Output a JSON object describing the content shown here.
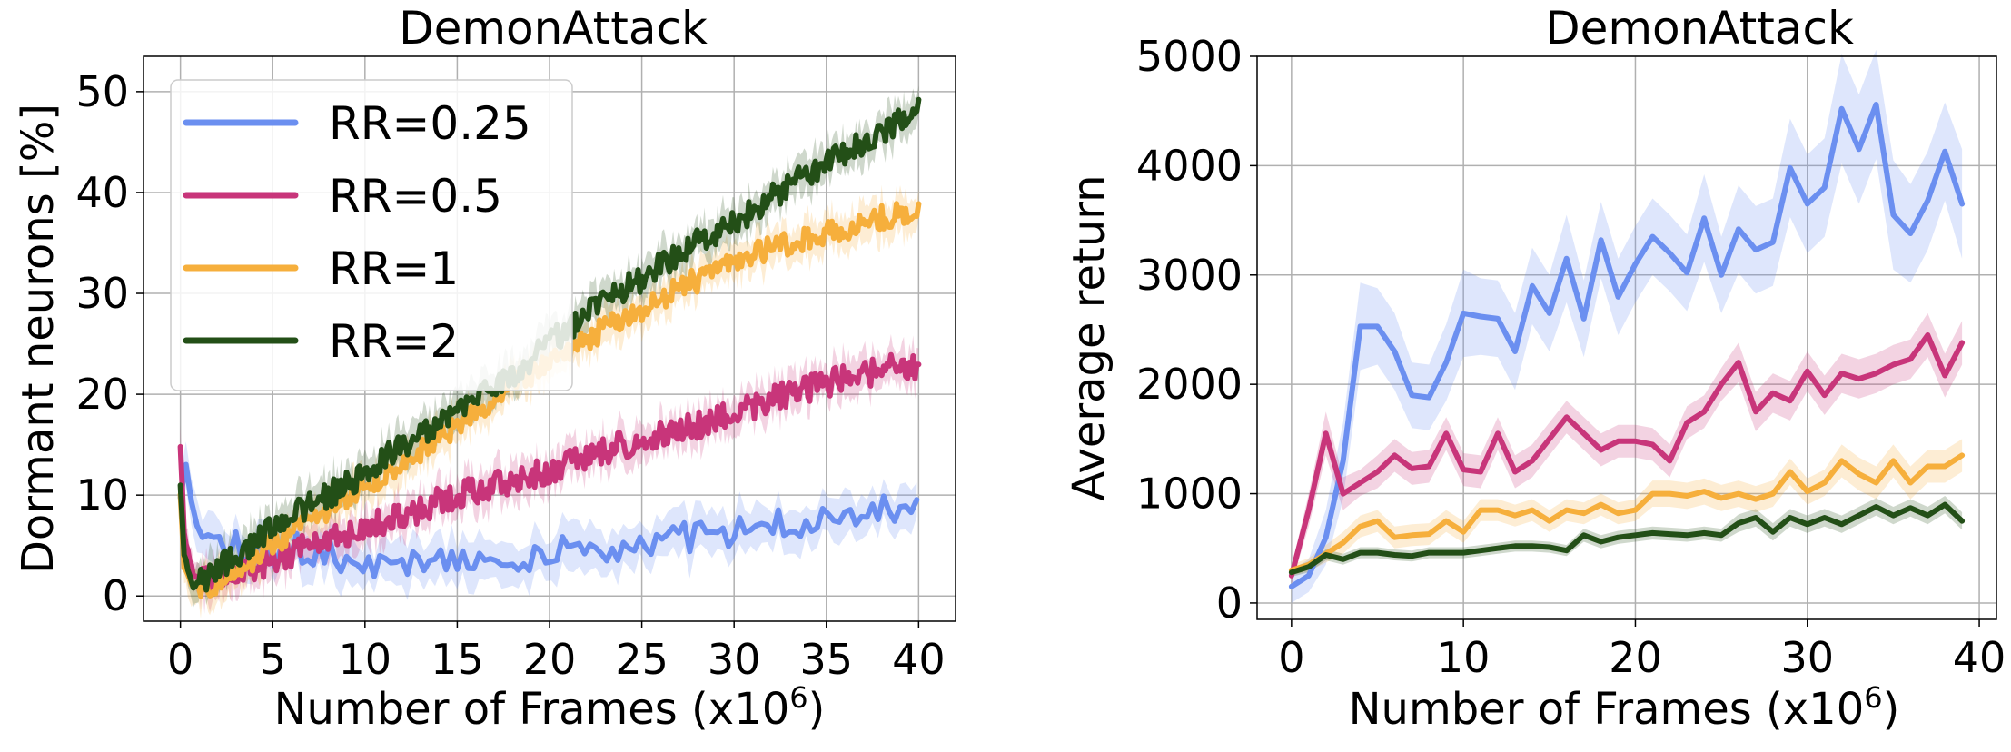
{
  "chart_data": [
    {
      "type": "line",
      "title": "DemonAttack",
      "xlabel": "Number of Frames (x10",
      "xlabel_sup": "6",
      "xlabel_end": ")",
      "ylabel": "Dormant neurons [%]",
      "xlim": [
        -2,
        42
      ],
      "ylim": [
        -2.5,
        53.5
      ],
      "xticks": [
        0,
        5,
        10,
        15,
        20,
        25,
        30,
        35,
        40
      ],
      "yticks": [
        0,
        10,
        20,
        30,
        40,
        50
      ],
      "grid": true,
      "legend": "top-left",
      "series": [
        {
          "name": "RR=0.25",
          "color": "#6b8ff0",
          "x": [
            0,
            0.3,
            0.8,
            2,
            3,
            4,
            5,
            6,
            7,
            8,
            9,
            10,
            11,
            12,
            13,
            14,
            15,
            16,
            17,
            18,
            19,
            20,
            21,
            22,
            23,
            24,
            25,
            26,
            27,
            28,
            29,
            30,
            31,
            32,
            33,
            34,
            35,
            36,
            37,
            38,
            39,
            40
          ],
          "y": [
            10,
            13,
            7,
            6,
            5.5,
            4.5,
            4,
            5,
            4,
            4,
            3.5,
            3.5,
            3,
            3,
            3.5,
            3.5,
            4,
            4,
            3.5,
            3,
            3.5,
            4,
            4.5,
            4.5,
            5,
            5,
            5.5,
            5.5,
            6,
            6,
            6,
            6.5,
            6.5,
            7,
            7,
            7,
            7.5,
            7.5,
            8,
            8.5,
            9,
            9
          ]
        },
        {
          "name": "RR=0.5",
          "color": "#c8357a",
          "x": [
            0,
            0.2,
            0.7,
            1.5,
            3,
            5,
            7,
            10,
            12,
            15,
            18,
            20,
            22,
            25,
            27,
            30,
            32,
            35,
            38,
            40
          ],
          "y": [
            15,
            6,
            2,
            1.5,
            2.5,
            3.5,
            5,
            7,
            8,
            10,
            11.5,
            12.5,
            14,
            15.5,
            16.5,
            18,
            19.5,
            21,
            22.5,
            23
          ]
        },
        {
          "name": "RR=1",
          "color": "#f6af3c",
          "x": [
            0,
            0.2,
            0.7,
            1.5,
            3,
            5,
            7,
            10,
            12,
            15,
            18,
            20,
            22,
            25,
            27,
            30,
            32,
            35,
            38,
            40
          ],
          "y": [
            10,
            3,
            0.8,
            1,
            2.5,
            5,
            7.5,
            11,
            13,
            17,
            21,
            23,
            25.5,
            28.5,
            30.5,
            33,
            34.5,
            36,
            37.5,
            38
          ]
        },
        {
          "name": "RR=2",
          "color": "#234f17",
          "x": [
            0,
            0.2,
            0.7,
            1.5,
            3,
            5,
            7,
            10,
            12,
            15,
            18,
            20,
            22,
            25,
            27,
            30,
            32,
            35,
            38,
            40
          ],
          "y": [
            11,
            4,
            1,
            2,
            4,
            7,
            9,
            12,
            15,
            18,
            22,
            25,
            28,
            31.5,
            34,
            37,
            39.5,
            43,
            46,
            48
          ]
        }
      ]
    },
    {
      "type": "line",
      "title": "DemonAttack",
      "xlabel": "Number of Frames (x10",
      "xlabel_sup": "6",
      "xlabel_end": ")",
      "ylabel": "Average return",
      "xlim": [
        -2,
        41
      ],
      "ylim": [
        -150,
        5000
      ],
      "xticks": [
        0,
        10,
        20,
        30,
        40
      ],
      "yticks": [
        0,
        1000,
        2000,
        3000,
        4000,
        5000
      ],
      "grid": true,
      "series": [
        {
          "name": "RR=0.25",
          "color": "#6b8ff0",
          "x": [
            0,
            1,
            2,
            3,
            4,
            5,
            6,
            7,
            8,
            9,
            10,
            11,
            12,
            13,
            14,
            15,
            16,
            17,
            18,
            19,
            20,
            21,
            22,
            23,
            24,
            25,
            26,
            27,
            28,
            29,
            30,
            31,
            32,
            33,
            34,
            35,
            36,
            37,
            38,
            39
          ],
          "y": [
            150,
            250,
            600,
            1300,
            2530,
            2530,
            2300,
            1900,
            1880,
            2200,
            2650,
            2620,
            2600,
            2300,
            2900,
            2650,
            3150,
            2600,
            3320,
            2800,
            3100,
            3350,
            3200,
            3020,
            3520,
            3000,
            3420,
            3230,
            3300,
            3980,
            3650,
            3800,
            4520,
            4150,
            4560,
            3550,
            3380,
            3680,
            4130,
            3650
          ],
          "band": [
            150,
            150,
            250,
            350,
            400,
            350,
            350,
            300,
            300,
            350,
            400,
            350,
            350,
            350,
            350,
            350,
            400,
            350,
            350,
            350,
            350,
            350,
            350,
            350,
            400,
            350,
            400,
            400,
            400,
            450,
            450,
            450,
            500,
            500,
            500,
            500,
            450,
            450,
            450,
            500
          ]
        },
        {
          "name": "RR=0.5",
          "color": "#c8357a",
          "x": [
            0,
            1,
            2,
            3,
            4,
            5,
            6,
            7,
            8,
            9,
            10,
            11,
            12,
            13,
            14,
            15,
            16,
            17,
            18,
            19,
            20,
            21,
            22,
            23,
            24,
            25,
            26,
            27,
            28,
            29,
            30,
            31,
            32,
            33,
            34,
            35,
            36,
            37,
            38,
            39
          ],
          "y": [
            250,
            850,
            1550,
            1000,
            1100,
            1200,
            1350,
            1230,
            1250,
            1550,
            1220,
            1200,
            1550,
            1200,
            1300,
            1500,
            1700,
            1550,
            1400,
            1480,
            1480,
            1450,
            1300,
            1650,
            1750,
            2000,
            2200,
            1750,
            1920,
            1850,
            2120,
            1900,
            2100,
            2050,
            2100,
            2180,
            2230,
            2450,
            2080,
            2380
          ],
          "band": [
            80,
            150,
            200,
            150,
            120,
            150,
            150,
            150,
            150,
            150,
            150,
            150,
            150,
            150,
            150,
            150,
            150,
            150,
            150,
            150,
            150,
            150,
            150,
            150,
            150,
            150,
            180,
            180,
            180,
            180,
            180,
            180,
            180,
            180,
            180,
            180,
            180,
            200,
            200,
            200
          ]
        },
        {
          "name": "RR=1",
          "color": "#f6af3c",
          "x": [
            0,
            1,
            2,
            3,
            4,
            5,
            6,
            7,
            8,
            9,
            10,
            11,
            12,
            13,
            14,
            15,
            16,
            17,
            18,
            19,
            20,
            21,
            22,
            23,
            24,
            25,
            26,
            27,
            28,
            29,
            30,
            31,
            32,
            33,
            34,
            35,
            36,
            37,
            38,
            39
          ],
          "y": [
            300,
            350,
            450,
            550,
            700,
            750,
            600,
            620,
            630,
            750,
            650,
            850,
            850,
            800,
            850,
            750,
            850,
            820,
            900,
            820,
            850,
            1000,
            1000,
            980,
            1020,
            960,
            1000,
            950,
            1000,
            1200,
            1020,
            1100,
            1300,
            1180,
            1100,
            1300,
            1100,
            1250,
            1250,
            1350
          ],
          "band": [
            50,
            60,
            80,
            100,
            100,
            100,
            100,
            100,
            100,
            100,
            100,
            100,
            100,
            100,
            100,
            100,
            100,
            100,
            100,
            100,
            100,
            120,
            120,
            120,
            120,
            120,
            120,
            120,
            120,
            120,
            120,
            120,
            150,
            150,
            150,
            150,
            150,
            150,
            150,
            150
          ]
        },
        {
          "name": "RR=2",
          "color": "#234f17",
          "x": [
            0,
            1,
            2,
            3,
            4,
            5,
            6,
            7,
            8,
            9,
            10,
            11,
            12,
            13,
            14,
            15,
            16,
            17,
            18,
            19,
            20,
            21,
            22,
            23,
            24,
            25,
            26,
            27,
            28,
            29,
            30,
            31,
            32,
            33,
            34,
            35,
            36,
            37,
            38,
            39
          ],
          "y": [
            280,
            330,
            440,
            400,
            460,
            460,
            440,
            430,
            460,
            460,
            460,
            480,
            500,
            520,
            520,
            510,
            480,
            620,
            560,
            600,
            620,
            640,
            630,
            620,
            640,
            620,
            730,
            780,
            650,
            780,
            720,
            780,
            720,
            800,
            880,
            800,
            870,
            800,
            900,
            750
          ],
          "band": [
            40,
            50,
            50,
            50,
            50,
            50,
            50,
            50,
            50,
            50,
            50,
            50,
            50,
            50,
            50,
            50,
            50,
            60,
            60,
            60,
            60,
            60,
            60,
            60,
            60,
            60,
            80,
            80,
            80,
            80,
            80,
            80,
            80,
            80,
            80,
            80,
            80,
            80,
            80,
            80
          ]
        }
      ]
    }
  ]
}
